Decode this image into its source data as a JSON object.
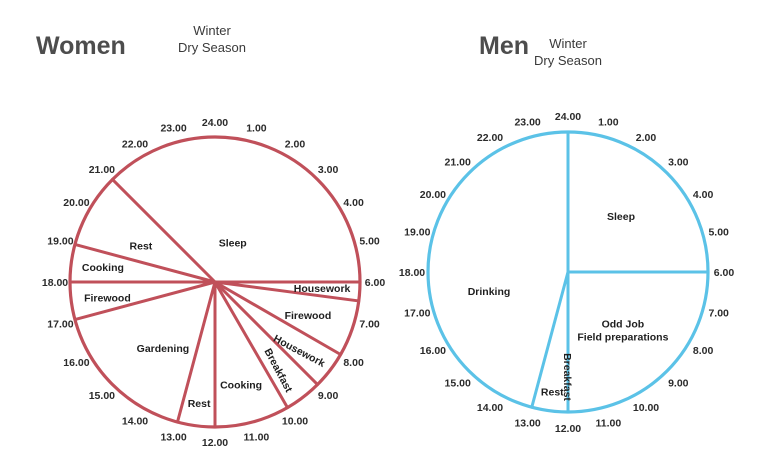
{
  "chart_data": [
    {
      "type": "pie",
      "title": "Women",
      "subtitle": [
        "Winter",
        "Dry Season"
      ],
      "color": "#c0505a",
      "hour_labels": [
        "24.00",
        "1.00",
        "2.00",
        "3.00",
        "4.00",
        "5.00",
        "6.00",
        "7.00",
        "8.00",
        "9.00",
        "10.00",
        "11.00",
        "12.00",
        "13.00",
        "14.00",
        "15.00",
        "16.00",
        "17.00",
        "18.00",
        "19.00",
        "20.00",
        "21.00",
        "22.00",
        "23.00"
      ],
      "activities": [
        {
          "label": "Housework",
          "start": 6.0,
          "end": 6.5
        },
        {
          "label": "Firewood",
          "start": 6.5,
          "end": 8.0
        },
        {
          "label": "Housework",
          "start": 8.0,
          "end": 9.0
        },
        {
          "label": "Breakfast",
          "start": 9.0,
          "end": 10.0
        },
        {
          "label": "Cooking",
          "start": 10.0,
          "end": 12.0
        },
        {
          "label": "Rest",
          "start": 12.0,
          "end": 13.0
        },
        {
          "label": "Gardening",
          "start": 13.0,
          "end": 17.0
        },
        {
          "label": "Firewood",
          "start": 17.0,
          "end": 18.0
        },
        {
          "label": "Cooking",
          "start": 18.0,
          "end": 19.0
        },
        {
          "label": "Rest",
          "start": 19.0,
          "end": 21.0
        },
        {
          "label": "Sleep",
          "start": 21.0,
          "end": 30.0
        }
      ]
    },
    {
      "type": "pie",
      "title": "Men",
      "subtitle": [
        "Winter",
        "Dry Season"
      ],
      "color": "#5bc2e7",
      "hour_labels": [
        "24.00",
        "1.00",
        "2.00",
        "3.00",
        "4.00",
        "5.00",
        "6.00",
        "7.00",
        "8.00",
        "9.00",
        "10.00",
        "11.00",
        "12.00",
        "13.00",
        "14.00",
        "15.00",
        "16.00",
        "17.00",
        "18.00",
        "19.00",
        "20.00",
        "21.00",
        "22.00",
        "23.00"
      ],
      "activities": [
        {
          "label": "Odd Job Field preparations",
          "lines": [
            "Odd Job",
            "Field preparations"
          ],
          "start": 6.0,
          "end": 12.0
        },
        {
          "label": "Breakfast",
          "start": 12.0,
          "end": 12.0
        },
        {
          "label": "Rest",
          "start": 12.0,
          "end": 13.0
        },
        {
          "label": "Drinking",
          "start": 13.0,
          "end": 24.0
        },
        {
          "label": "Sleep",
          "start": 24.0,
          "end": 30.0
        }
      ]
    }
  ]
}
